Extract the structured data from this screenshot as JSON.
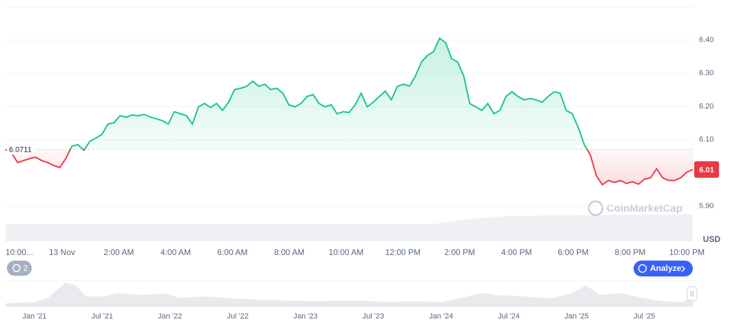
{
  "chart_data": {
    "type": "line",
    "values": [
      6.07,
      6.06,
      6.031,
      6.037,
      6.043,
      6.047,
      6.037,
      6.031,
      6.022,
      6.016,
      6.043,
      6.08,
      6.085,
      6.068,
      6.095,
      6.105,
      6.116,
      6.147,
      6.151,
      6.172,
      6.168,
      6.174,
      6.172,
      6.176,
      6.168,
      6.163,
      6.157,
      6.147,
      6.184,
      6.178,
      6.172,
      6.147,
      6.199,
      6.209,
      6.197,
      6.209,
      6.188,
      6.213,
      6.251,
      6.255,
      6.261,
      6.276,
      6.261,
      6.267,
      6.251,
      6.255,
      6.24,
      6.205,
      6.199,
      6.209,
      6.23,
      6.236,
      6.209,
      6.199,
      6.205,
      6.178,
      6.184,
      6.182,
      6.205,
      6.24,
      6.199,
      6.213,
      6.23,
      6.246,
      6.22,
      6.261,
      6.267,
      6.261,
      6.292,
      6.334,
      6.354,
      6.365,
      6.406,
      6.392,
      6.344,
      6.334,
      6.292,
      6.209,
      6.199,
      6.188,
      6.209,
      6.178,
      6.188,
      6.23,
      6.244,
      6.23,
      6.22,
      6.224,
      6.22,
      6.213,
      6.23,
      6.244,
      6.24,
      6.188,
      6.178,
      6.137,
      6.085,
      6.054,
      5.991,
      5.964,
      5.977,
      5.971,
      5.977,
      5.968,
      5.973,
      5.966,
      5.981,
      5.985,
      6.012,
      5.985,
      5.977,
      5.977,
      5.985,
      6.002,
      6.01
    ],
    "baseline": 6.0711,
    "current_price": 6.01,
    "up_color": "#16c784",
    "down_color": "#ea3943",
    "ylim": [
      5.8,
      6.5
    ],
    "yticks": [
      {
        "value": 5.9,
        "label": "5.90"
      },
      {
        "value": 6.1,
        "label": "6.10"
      },
      {
        "value": 6.2,
        "label": "6.20"
      },
      {
        "value": 6.3,
        "label": "6.30"
      },
      {
        "value": 6.4,
        "label": "6.40"
      }
    ],
    "y_unit": "USD",
    "x_labels": [
      "10:00...",
      "13 Nov",
      "2:00 AM",
      "4:00 AM",
      "6:00 AM",
      "8:00 AM",
      "10:00 AM",
      "12:00 PM",
      "2:00 PM",
      "4:00 PM",
      "6:00 PM",
      "8:00 PM",
      "10:00 PM"
    ],
    "navigator_labels": [
      "Jan '21",
      "Jul '21",
      "Jan '22",
      "Jul '22",
      "Jan '23",
      "Jul '23",
      "Jan '24",
      "Jul '24",
      "Jan '25",
      "Jul '25"
    ],
    "watermark": "CoinMarketCap",
    "history_count": "2",
    "analyze_button": "Analyze"
  }
}
